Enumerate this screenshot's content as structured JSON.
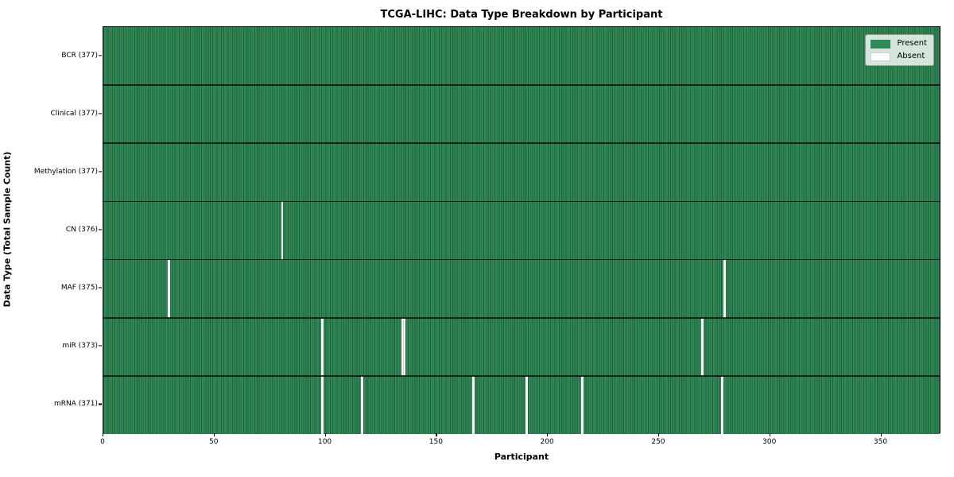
{
  "chart_data": {
    "type": "heatmap",
    "title": "TCGA-LIHC: Data Type Breakdown by Participant",
    "xlabel": "Participant",
    "ylabel": "Data Type (Total Sample Count)",
    "n_participants": 377,
    "x_ticks": [
      0,
      50,
      100,
      150,
      200,
      250,
      300,
      350
    ],
    "rows": [
      {
        "name": "BCR",
        "label": "BCR (377)",
        "total": 377,
        "absent_participants": []
      },
      {
        "name": "Clinical",
        "label": "Clinical (377)",
        "total": 377,
        "absent_participants": []
      },
      {
        "name": "Methylation",
        "label": "Methylation (377)",
        "total": 377,
        "absent_participants": []
      },
      {
        "name": "CN",
        "label": "CN (376)",
        "total": 376,
        "absent_participants": [
          80
        ]
      },
      {
        "name": "MAF",
        "label": "MAF (375)",
        "total": 375,
        "absent_participants": [
          29,
          279
        ]
      },
      {
        "name": "miR",
        "label": "miR (373)",
        "total": 373,
        "absent_participants": [
          98,
          134,
          135,
          269
        ]
      },
      {
        "name": "mRNA",
        "label": "mRNA (371)",
        "total": 371,
        "absent_participants": [
          98,
          116,
          166,
          190,
          215,
          278
        ]
      }
    ],
    "legend": [
      {
        "label": "Present",
        "color": "#2e8b57"
      },
      {
        "label": "Absent",
        "color": "#ffffff"
      }
    ],
    "colors": {
      "present": "#318a56",
      "cell_grid_line": "#1f5e3b",
      "row_separator": "#151515",
      "frame": "#1a1a1a",
      "absent": "#ffffff"
    },
    "legend_position": "upper right",
    "grid": false
  }
}
